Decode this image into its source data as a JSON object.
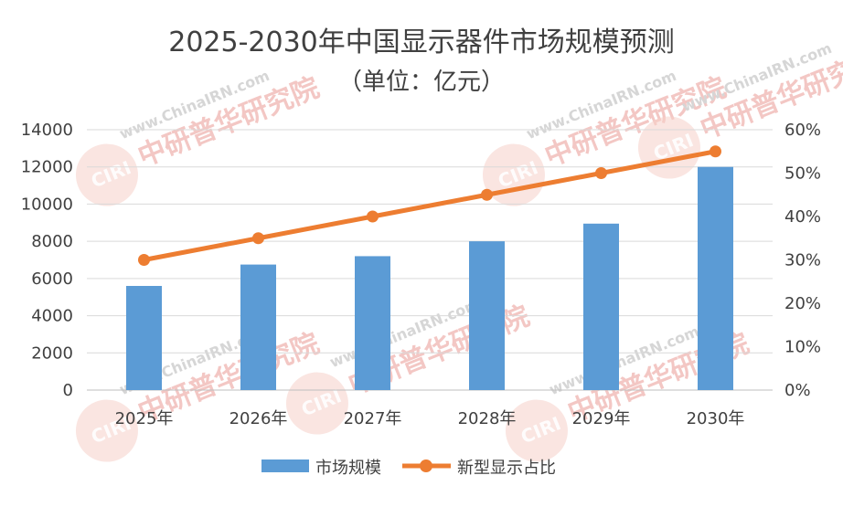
{
  "chart_data": {
    "type": "bar",
    "title": "2025-2030年中国显示器件市场规模预测",
    "subtitle": "（单位：亿元）",
    "categories": [
      "2025年",
      "2026年",
      "2027年",
      "2028年",
      "2029年",
      "2030年"
    ],
    "series": [
      {
        "name": "市场规模",
        "type": "bar",
        "axis": "left",
        "color": "#5B9BD5",
        "values": [
          5600,
          6750,
          7200,
          8000,
          8950,
          12000
        ]
      },
      {
        "name": "新型显示占比",
        "type": "line",
        "axis": "right",
        "color": "#ED7D31",
        "values": [
          0.3,
          0.35,
          0.4,
          0.45,
          0.5,
          0.55
        ]
      }
    ],
    "y_left": {
      "min": 0,
      "max": 14000,
      "ticks": [
        "0",
        "2000",
        "4000",
        "6000",
        "8000",
        "10000",
        "12000",
        "14000"
      ]
    },
    "y_right": {
      "min": 0,
      "max": 0.6,
      "ticks": [
        "0%",
        "10%",
        "20%",
        "30%",
        "40%",
        "50%",
        "60%"
      ]
    },
    "grid": true,
    "legend": "bottom"
  },
  "watermark": {
    "url_text": "www.ChinaIRN.com",
    "cn_text": "中研普华研究院",
    "logo_text": "CIRI",
    "colors": {
      "gray": "#d6d6d6",
      "red": "#f3c7c4",
      "logo": "#f6cfc9"
    }
  }
}
